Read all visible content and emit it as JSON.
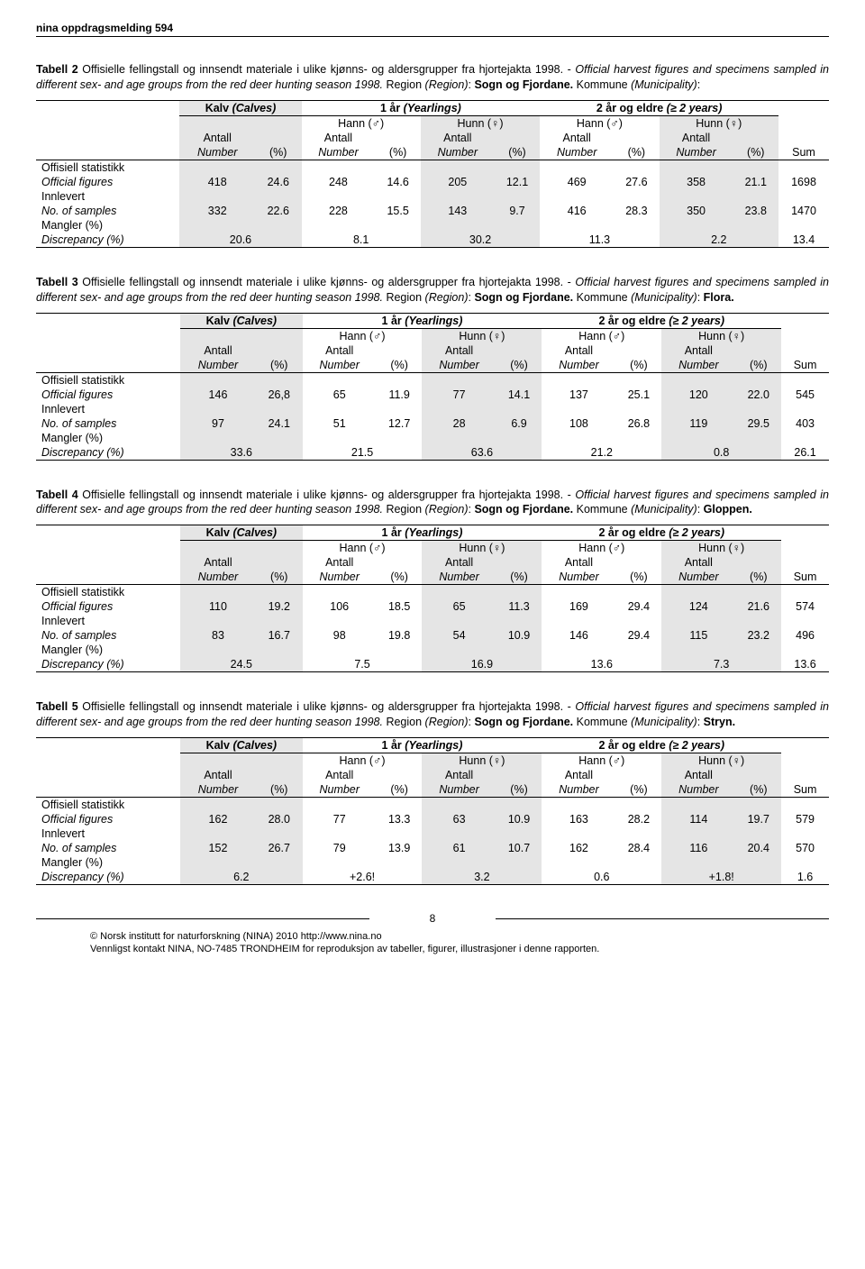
{
  "header": {
    "series": "nina oppdragsmelding 594"
  },
  "text": {
    "caption_bold_prefix": "Tabell ",
    "caption_core1": " Offisielle fellingstall og innsendt materiale i ulike kjønns- og aldersgrupper fra hjortejakta 1998. - ",
    "caption_italic": "Official harvest figures and specimens sampled in different sex- and age groups from the red deer hunting season 1998.",
    "caption_region_label": " Region ",
    "caption_region_ital": "(Region)",
    "caption_colon": ": ",
    "caption_mun_label": " Kommune ",
    "caption_mun_ital": "(Municipality)",
    "region_name": "Sogn og Fjordane.",
    "header_kalv": "Kalv",
    "header_kalv_it": "(Calves)",
    "header_1yr": "1 år",
    "header_1yr_it": "(Yearlings)",
    "header_2yr": "2 år og eldre",
    "header_2yr_it": "(≥ 2 years)",
    "hann": "Hann (♂)",
    "hunn": "Hunn (♀)",
    "antall": "Antall",
    "number": "Number",
    "pct": "(%)",
    "sum": "Sum",
    "row_off_stat": "Offisiell statistikk",
    "row_off_fig": "Official figures",
    "row_innlevert": "Innlevert",
    "row_nosamples": "No. of samples",
    "row_mangler": "Mangler (%)",
    "row_discrep": "Discrepancy (%)"
  },
  "tables": {
    "t2": {
      "num": "2",
      "mun": "Sogn og Fjordane",
      "r1": [
        "418",
        "24.6",
        "248",
        "14.6",
        "205",
        "12.1",
        "469",
        "27.6",
        "358",
        "21.1",
        "1698"
      ],
      "r2": [
        "332",
        "22.6",
        "228",
        "15.5",
        "143",
        "9.7",
        "416",
        "28.3",
        "350",
        "23.8",
        "1470"
      ],
      "r3": [
        "20.6",
        "8.1",
        "30.2",
        "11.3",
        "2.2",
        "13.4"
      ]
    },
    "t3": {
      "num": "3",
      "mun": "Flora.",
      "r1": [
        "146",
        "26,8",
        "65",
        "11.9",
        "77",
        "14.1",
        "137",
        "25.1",
        "120",
        "22.0",
        "545"
      ],
      "r2": [
        "97",
        "24.1",
        "51",
        "12.7",
        "28",
        "6.9",
        "108",
        "26.8",
        "119",
        "29.5",
        "403"
      ],
      "r3": [
        "33.6",
        "21.5",
        "63.6",
        "21.2",
        "0.8",
        "26.1"
      ]
    },
    "t4": {
      "num": "4",
      "mun": "Gloppen.",
      "r1": [
        "110",
        "19.2",
        "106",
        "18.5",
        "65",
        "11.3",
        "169",
        "29.4",
        "124",
        "21.6",
        "574"
      ],
      "r2": [
        "83",
        "16.7",
        "98",
        "19.8",
        "54",
        "10.9",
        "146",
        "29.4",
        "115",
        "23.2",
        "496"
      ],
      "r3": [
        "24.5",
        "7.5",
        "16.9",
        "13.6",
        "7.3",
        "13.6"
      ]
    },
    "t5": {
      "num": "5",
      "mun": "Stryn.",
      "r1": [
        "162",
        "28.0",
        "77",
        "13.3",
        "63",
        "10.9",
        "163",
        "28.2",
        "114",
        "19.7",
        "579"
      ],
      "r2": [
        "152",
        "26.7",
        "79",
        "13.9",
        "61",
        "10.7",
        "162",
        "28.4",
        "116",
        "20.4",
        "570"
      ],
      "r3": [
        "6.2",
        "+2.6!",
        "3.2",
        "0.6",
        "+1.8!",
        "1.6"
      ]
    }
  },
  "footer": {
    "page": "8",
    "copy1": "© Norsk institutt for naturforskning (NINA) 2010 http://www.nina.no",
    "copy2": "Vennligst kontakt NINA, NO-7485 TRONDHEIM for reproduksjon av tabeller, figurer, illustrasjoner i denne rapporten."
  }
}
